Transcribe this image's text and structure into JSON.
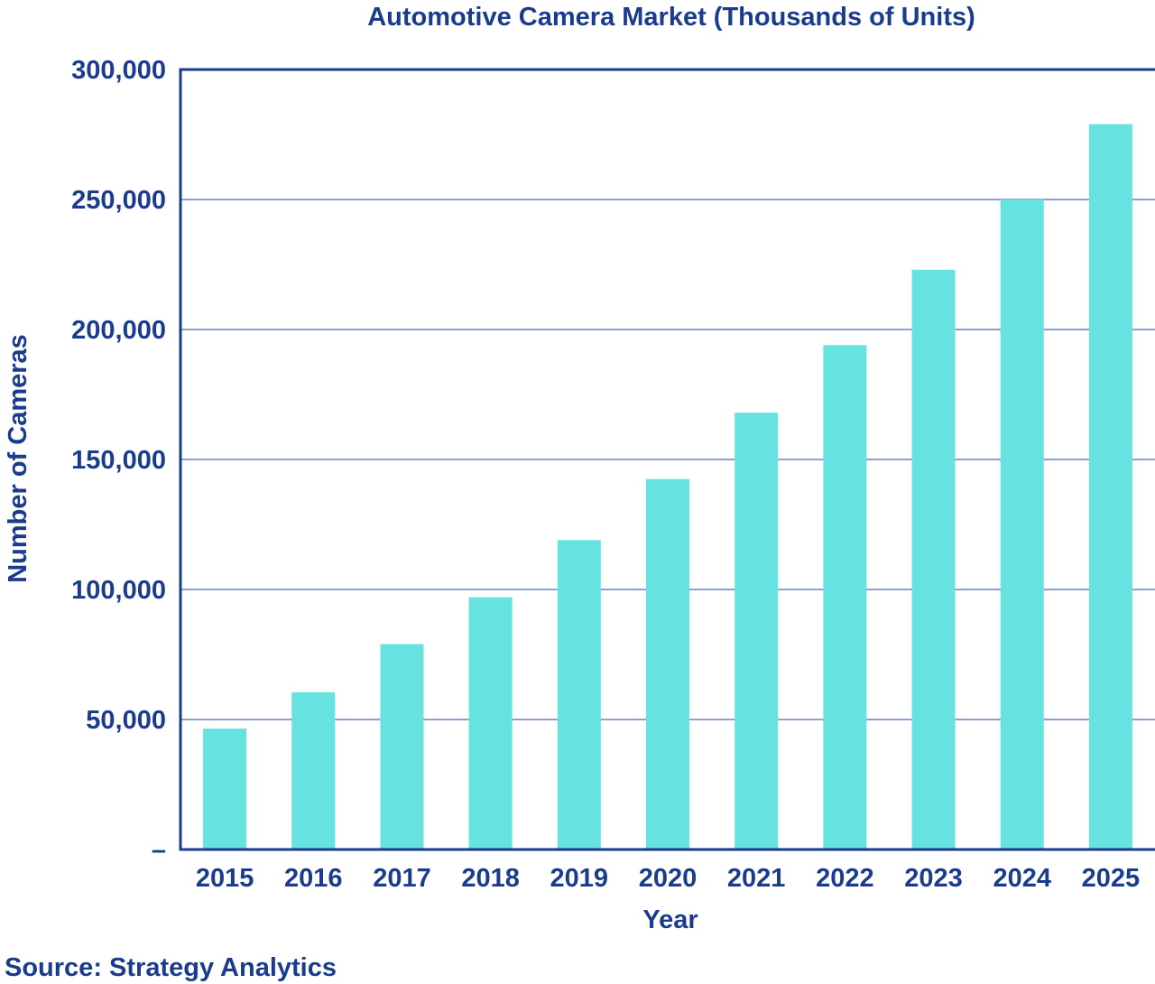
{
  "chart_data": {
    "type": "bar",
    "title": "Automotive Camera Market (Thousands of Units)",
    "xlabel": "Year",
    "ylabel": "Number of Cameras",
    "source": "Source: Strategy Analytics",
    "categories": [
      "2015",
      "2016",
      "2017",
      "2018",
      "2019",
      "2020",
      "2021",
      "2022",
      "2023",
      "2024",
      "2025"
    ],
    "values": [
      46500,
      60500,
      79000,
      97000,
      119000,
      142500,
      168000,
      194000,
      223000,
      250000,
      279000
    ],
    "ylim": [
      0,
      300000
    ],
    "yticks": [
      0,
      50000,
      100000,
      150000,
      200000,
      250000,
      300000
    ],
    "ytick_labels": [
      "–",
      "50,000",
      "100,000",
      "150,000",
      "200,000",
      "250,000",
      "300,000"
    ],
    "grid": true,
    "legend": "none",
    "colors": {
      "bar": "#66e3e1",
      "text": "#1b3c8c",
      "axis": "#1b3c8c",
      "grid": "#8f9fcf"
    }
  }
}
